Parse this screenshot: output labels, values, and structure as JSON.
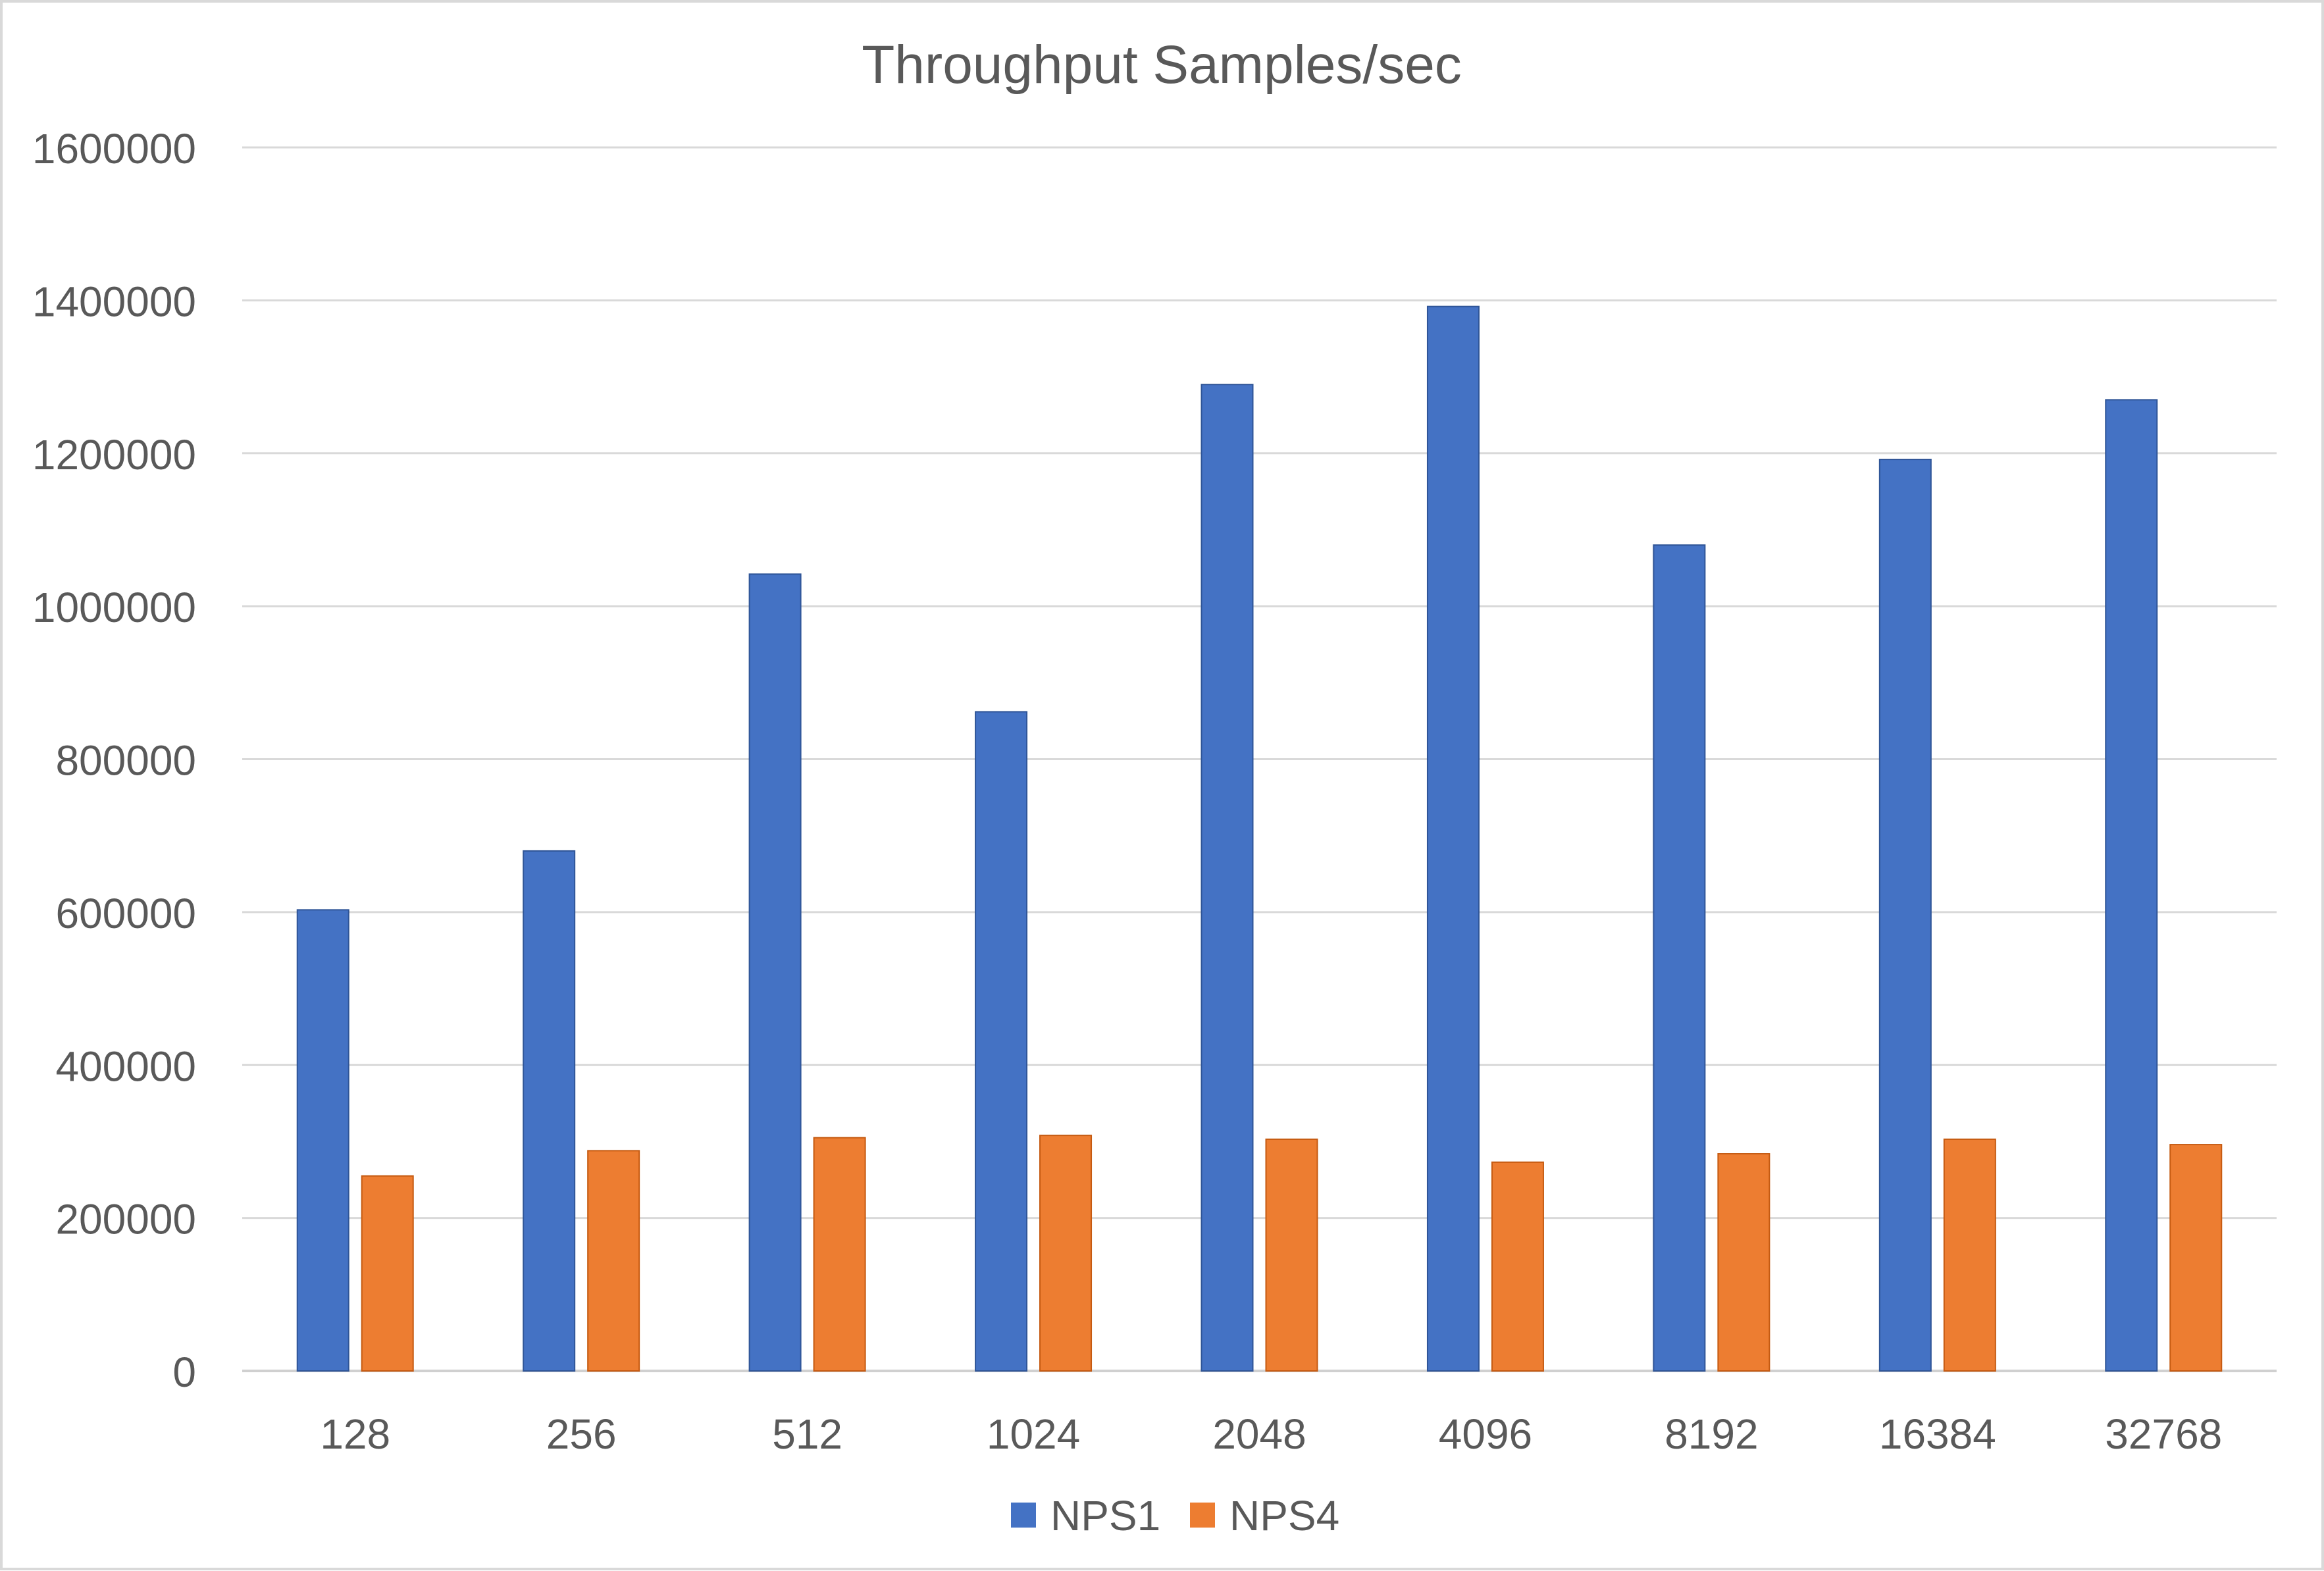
{
  "chart_data": {
    "type": "bar",
    "title": "Throughput Samples/sec",
    "xlabel": "",
    "ylabel": "",
    "categories": [
      "128",
      "256",
      "512",
      "1024",
      "2048",
      "4096",
      "8192",
      "16384",
      "32768"
    ],
    "series": [
      {
        "name": "NPS1",
        "values": [
          603000,
          680000,
          1042000,
          862000,
          1290000,
          1392000,
          1080000,
          1192000,
          1270000
        ],
        "color": "#4472C4"
      },
      {
        "name": "NPS4",
        "values": [
          255000,
          288000,
          305000,
          308000,
          303000,
          273000,
          284000,
          303000,
          296000
        ],
        "color": "#ED7D31"
      }
    ],
    "ylim": [
      0,
      1600000
    ],
    "yticks": [
      "0",
      "200000",
      "400000",
      "600000",
      "800000",
      "1000000",
      "1200000",
      "1400000",
      "1600000"
    ],
    "grid": true,
    "legend_position": "bottom"
  }
}
